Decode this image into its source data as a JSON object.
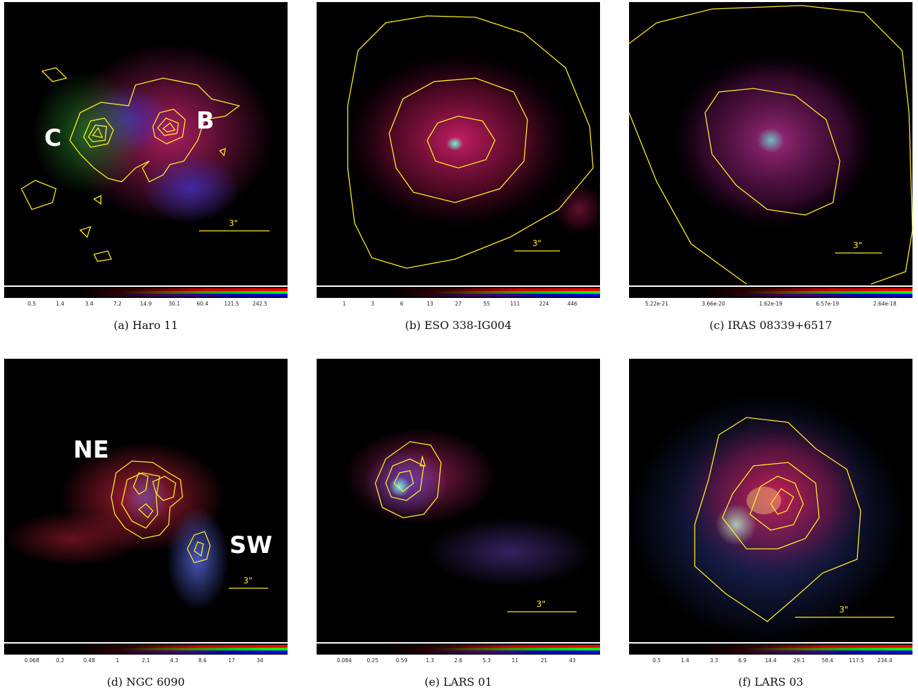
{
  "figure": {
    "panels": [
      {
        "caption": "(a) Haro 11",
        "scalebar": "3\"",
        "labels": [
          "C",
          "B"
        ],
        "colorbar_ticks": [
          "0.5",
          "1.4",
          "3.4",
          "7.2",
          "14.9",
          "30.1",
          "60.4",
          "121.5",
          "242.5"
        ]
      },
      {
        "caption": "(b) ESO 338-IG004",
        "scalebar": "3\"",
        "labels": [],
        "colorbar_ticks": [
          "1",
          "3",
          "6",
          "13",
          "27",
          "55",
          "111",
          "224",
          "446"
        ]
      },
      {
        "caption": "(c) IRAS 08339+6517",
        "scalebar": "3\"",
        "labels": [],
        "colorbar_ticks": [
          "5.22e-21",
          "3.66e-20",
          "1.62e-19",
          "6.57e-19",
          "2.64e-18"
        ]
      },
      {
        "caption": "(d) NGC 6090",
        "scalebar": "3\"",
        "labels": [
          "NE",
          "SW"
        ],
        "colorbar_ticks": [
          "0.068",
          "0.2",
          "0.48",
          "1",
          "2.1",
          "4.3",
          "8.6",
          "17",
          "34"
        ]
      },
      {
        "caption": "(e) LARS 01",
        "scalebar": "3\"",
        "labels": [],
        "colorbar_ticks": [
          "0.084",
          "0.25",
          "0.59",
          "1.3",
          "2.6",
          "5.3",
          "11",
          "21",
          "43"
        ]
      },
      {
        "caption": "(f) LARS 03",
        "scalebar": "3\"",
        "labels": [],
        "colorbar_ticks": [
          "0.5",
          "1.4",
          "3.3",
          "6.9",
          "14.4",
          "29.1",
          "58.4",
          "117.5",
          "234.4"
        ]
      }
    ],
    "colors": {
      "contour": "#ffee22",
      "label": "#ffffff",
      "background": "#000000"
    }
  }
}
